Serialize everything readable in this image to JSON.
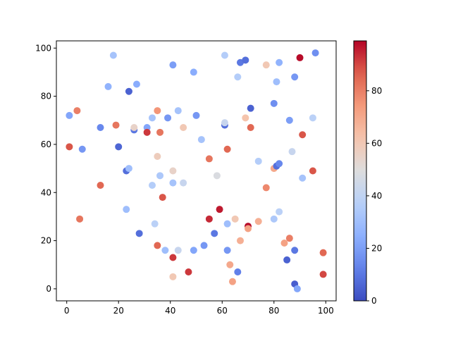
{
  "chart_data": {
    "type": "scatter",
    "title": "",
    "xlabel": "",
    "ylabel": "",
    "xlim": [
      -4,
      104
    ],
    "ylim": [
      -5,
      103
    ],
    "x_ticks": [
      "0",
      "20",
      "40",
      "60",
      "80",
      "100"
    ],
    "y_ticks": [
      "0",
      "20",
      "40",
      "60",
      "80",
      "100"
    ],
    "colormap": "coolwarm",
    "colorbar": {
      "min": 0,
      "max": 99,
      "ticks": [
        "0",
        "20",
        "40",
        "60",
        "80"
      ]
    },
    "grid": false,
    "points": [
      {
        "x": 1,
        "y": 72,
        "c": 22
      },
      {
        "x": 1,
        "y": 59,
        "c": 88
      },
      {
        "x": 4,
        "y": 74,
        "c": 80
      },
      {
        "x": 5,
        "y": 29,
        "c": 82
      },
      {
        "x": 6,
        "y": 58,
        "c": 18
      },
      {
        "x": 13,
        "y": 67,
        "c": 14
      },
      {
        "x": 13,
        "y": 43,
        "c": 85
      },
      {
        "x": 16,
        "y": 84,
        "c": 26
      },
      {
        "x": 18,
        "y": 97,
        "c": 32
      },
      {
        "x": 19,
        "y": 68,
        "c": 82
      },
      {
        "x": 20,
        "y": 59,
        "c": 6
      },
      {
        "x": 23,
        "y": 49,
        "c": 8
      },
      {
        "x": 23,
        "y": 33,
        "c": 30
      },
      {
        "x": 24,
        "y": 82,
        "c": 5
      },
      {
        "x": 24,
        "y": 50,
        "c": 30
      },
      {
        "x": 26,
        "y": 66,
        "c": 10
      },
      {
        "x": 26,
        "y": 67,
        "c": 55
      },
      {
        "x": 27,
        "y": 85,
        "c": 24
      },
      {
        "x": 28,
        "y": 23,
        "c": 8
      },
      {
        "x": 31,
        "y": 67,
        "c": 22
      },
      {
        "x": 31,
        "y": 65,
        "c": 92
      },
      {
        "x": 33,
        "y": 71,
        "c": 32
      },
      {
        "x": 33,
        "y": 43,
        "c": 36
      },
      {
        "x": 34,
        "y": 27,
        "c": 38
      },
      {
        "x": 35,
        "y": 74,
        "c": 75
      },
      {
        "x": 35,
        "y": 55,
        "c": 58
      },
      {
        "x": 35,
        "y": 18,
        "c": 85
      },
      {
        "x": 36,
        "y": 65,
        "c": 82
      },
      {
        "x": 36,
        "y": 47,
        "c": 34
      },
      {
        "x": 37,
        "y": 38,
        "c": 88
      },
      {
        "x": 38,
        "y": 16,
        "c": 30
      },
      {
        "x": 39,
        "y": 71,
        "c": 18
      },
      {
        "x": 41,
        "y": 93,
        "c": 20
      },
      {
        "x": 41,
        "y": 44,
        "c": 32
      },
      {
        "x": 41,
        "y": 49,
        "c": 55
      },
      {
        "x": 41,
        "y": 13,
        "c": 92
      },
      {
        "x": 41,
        "y": 5,
        "c": 60
      },
      {
        "x": 43,
        "y": 74,
        "c": 32
      },
      {
        "x": 43,
        "y": 16,
        "c": 42
      },
      {
        "x": 45,
        "y": 67,
        "c": 60
      },
      {
        "x": 45,
        "y": 44,
        "c": 42
      },
      {
        "x": 47,
        "y": 7,
        "c": 92
      },
      {
        "x": 49,
        "y": 90,
        "c": 24
      },
      {
        "x": 49,
        "y": 16,
        "c": 22
      },
      {
        "x": 50,
        "y": 72,
        "c": 18
      },
      {
        "x": 52,
        "y": 62,
        "c": 32
      },
      {
        "x": 53,
        "y": 18,
        "c": 18
      },
      {
        "x": 55,
        "y": 54,
        "c": 82
      },
      {
        "x": 55,
        "y": 29,
        "c": 94
      },
      {
        "x": 57,
        "y": 23,
        "c": 10
      },
      {
        "x": 58,
        "y": 47,
        "c": 48
      },
      {
        "x": 59,
        "y": 33,
        "c": 96
      },
      {
        "x": 61,
        "y": 97,
        "c": 36
      },
      {
        "x": 61,
        "y": 68,
        "c": 8
      },
      {
        "x": 61,
        "y": 69,
        "c": 42
      },
      {
        "x": 62,
        "y": 58,
        "c": 85
      },
      {
        "x": 62,
        "y": 27,
        "c": 30
      },
      {
        "x": 62,
        "y": 16,
        "c": 18
      },
      {
        "x": 63,
        "y": 10,
        "c": 70
      },
      {
        "x": 64,
        "y": 3,
        "c": 72
      },
      {
        "x": 65,
        "y": 29,
        "c": 60
      },
      {
        "x": 66,
        "y": 88,
        "c": 36
      },
      {
        "x": 66,
        "y": 7,
        "c": 12
      },
      {
        "x": 67,
        "y": 94,
        "c": 10
      },
      {
        "x": 67,
        "y": 20,
        "c": 68
      },
      {
        "x": 69,
        "y": 95,
        "c": 8
      },
      {
        "x": 69,
        "y": 71,
        "c": 62
      },
      {
        "x": 70,
        "y": 26,
        "c": 98
      },
      {
        "x": 70,
        "y": 25,
        "c": 72
      },
      {
        "x": 71,
        "y": 75,
        "c": 5
      },
      {
        "x": 71,
        "y": 67,
        "c": 85
      },
      {
        "x": 74,
        "y": 53,
        "c": 36
      },
      {
        "x": 74,
        "y": 28,
        "c": 68
      },
      {
        "x": 77,
        "y": 93,
        "c": 60
      },
      {
        "x": 77,
        "y": 42,
        "c": 78
      },
      {
        "x": 80,
        "y": 77,
        "c": 16
      },
      {
        "x": 80,
        "y": 50,
        "c": 70
      },
      {
        "x": 80,
        "y": 29,
        "c": 34
      },
      {
        "x": 81,
        "y": 86,
        "c": 30
      },
      {
        "x": 81,
        "y": 51,
        "c": 8
      },
      {
        "x": 82,
        "y": 94,
        "c": 26
      },
      {
        "x": 82,
        "y": 52,
        "c": 14
      },
      {
        "x": 82,
        "y": 32,
        "c": 38
      },
      {
        "x": 84,
        "y": 19,
        "c": 72
      },
      {
        "x": 85,
        "y": 12,
        "c": 5
      },
      {
        "x": 86,
        "y": 70,
        "c": 20
      },
      {
        "x": 86,
        "y": 21,
        "c": 80
      },
      {
        "x": 87,
        "y": 57,
        "c": 42
      },
      {
        "x": 88,
        "y": 88,
        "c": 18
      },
      {
        "x": 88,
        "y": 16,
        "c": 10
      },
      {
        "x": 88,
        "y": 2,
        "c": 4
      },
      {
        "x": 89,
        "y": 0,
        "c": 22
      },
      {
        "x": 90,
        "y": 96,
        "c": 98
      },
      {
        "x": 91,
        "y": 64,
        "c": 88
      },
      {
        "x": 91,
        "y": 46,
        "c": 32
      },
      {
        "x": 95,
        "y": 71,
        "c": 38
      },
      {
        "x": 95,
        "y": 49,
        "c": 88
      },
      {
        "x": 96,
        "y": 98,
        "c": 16
      },
      {
        "x": 99,
        "y": 15,
        "c": 85
      },
      {
        "x": 99,
        "y": 6,
        "c": 90
      }
    ]
  }
}
